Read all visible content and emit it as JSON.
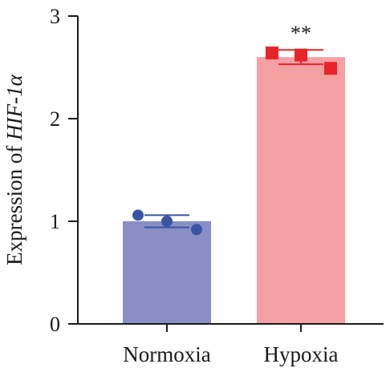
{
  "chart_data": {
    "type": "bar",
    "categories": [
      "Normoxia",
      "Hypoxia"
    ],
    "values": [
      1.0,
      2.6
    ],
    "errors": [
      0.06,
      0.07
    ],
    "points": [
      [
        1.06,
        1.0,
        0.92
      ],
      [
        2.64,
        2.62,
        2.49
      ]
    ],
    "significance": [
      "",
      "**"
    ],
    "ylabel": {
      "prefix": "Expression of ",
      "gene": "HIF-1",
      "greek": "α"
    },
    "xlabel": "",
    "ylim": [
      0,
      3
    ],
    "yticks": [
      0,
      1,
      2,
      3
    ],
    "colors": {
      "bars": [
        "#8a8ec4",
        "#f5a0a3"
      ],
      "points": [
        "#3a54a4",
        "#e8242a"
      ],
      "errorbars": [
        "#3a54a4",
        "#e8242a"
      ],
      "axis": "#1a1a1a"
    },
    "markers": [
      "circle",
      "square"
    ]
  }
}
